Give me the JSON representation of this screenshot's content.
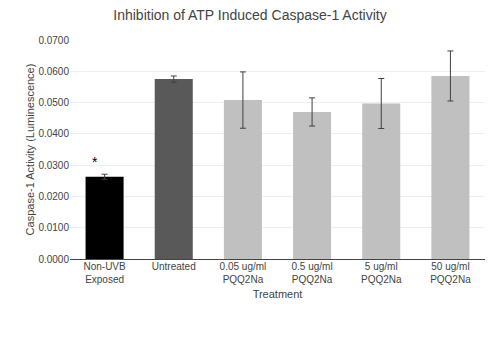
{
  "chart_data": {
    "type": "bar",
    "title": "Inhibition of ATP Induced Caspase-1 Activity",
    "xlabel": "Treatment",
    "ylabel": "Caspase-1 Activity (Luminescence)",
    "categories": [
      "Non-UVB\nExposed",
      "Untreated",
      "0.05 ug/ml\nPQQ2Na",
      "0.5 ug/ml\nPQQ2Na",
      "5 ug/ml\nPQQ2Na",
      "50 ug/ml\nPQQ2Na"
    ],
    "values": [
      0.0263,
      0.0575,
      0.0508,
      0.047,
      0.0497,
      0.0585
    ],
    "errors": [
      0.0008,
      0.001,
      0.009,
      0.0045,
      0.008,
      0.008
    ],
    "colors": [
      "#000000",
      "#595959",
      "#c0c0c0",
      "#c0c0c0",
      "#c0c0c0",
      "#c0c0c0"
    ],
    "ylim": [
      0.0,
      0.07
    ],
    "yticks": [
      {
        "value": 0.0,
        "label": "0.0000"
      },
      {
        "value": 0.01,
        "label": "0.0100"
      },
      {
        "value": 0.02,
        "label": "0.0200"
      },
      {
        "value": 0.03,
        "label": "0.0300"
      },
      {
        "value": 0.04,
        "label": "0.0400"
      },
      {
        "value": 0.05,
        "label": "0.0500"
      },
      {
        "value": 0.06,
        "label": "0.0600"
      },
      {
        "value": 0.07,
        "label": "0.0700"
      }
    ],
    "annotations": [
      {
        "text": "*",
        "category": "Non-UVB\nExposed",
        "y": 0.0278
      }
    ],
    "grid": true
  }
}
